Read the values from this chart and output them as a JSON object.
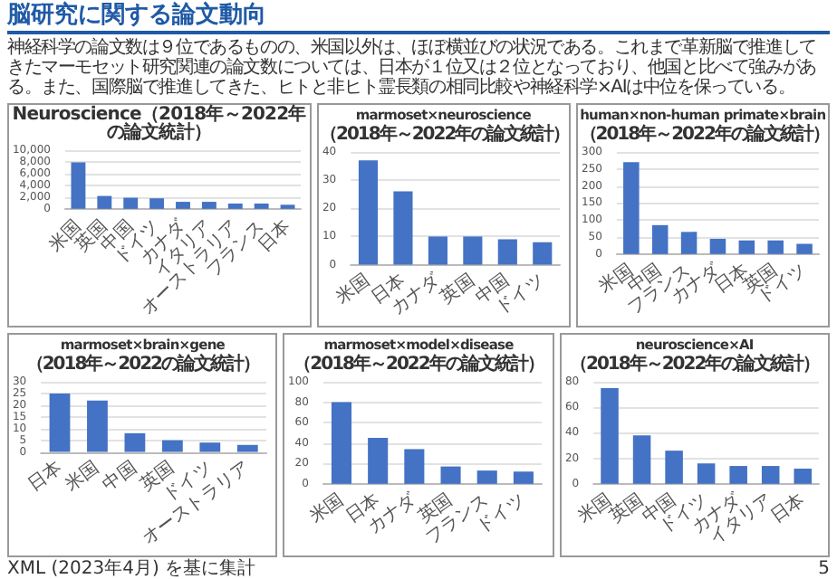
{
  "chart_data": [
    {
      "type": "other",
      "title": "脳研究に関する論文動向",
      "annotations": [
        "神経科学の論文数は９位であるものの、米国以外は、ほぼ横並びの状況である。これまで革新脳で推進してきたマーモセット研究関連の論文数については、日本が１位又は２位となっており、他国と比べて強みがある。また、国際脳で推進してきた、ヒトと非ヒト霊長類の相同比較や神経科学×AIは中位を保っている。"
      ]
    },
    {
      "type": "bar",
      "title": "Neuroscience（2018年～2022年の論文統計）",
      "categories": [
        "米国",
        "英国",
        "中国",
        "ドイツ",
        "カナダ",
        "イタリア",
        "オーストラリア",
        "フランス",
        "日本"
      ],
      "values": [
        7900,
        2200,
        1900,
        1800,
        1200,
        1200,
        900,
        900,
        700
      ],
      "color": "#4472c4",
      "ylim": [
        0,
        10000
      ],
      "yticks": [
        0,
        {
          "value": 2000,
          "label": "2,000"
        },
        {
          "value": 4000,
          "label": "4,000"
        },
        {
          "value": 6000,
          "label": "6,000"
        },
        {
          "value": 8000,
          "label": "8,000"
        },
        {
          "value": 10000,
          "label": "10,000"
        }
      ],
      "grid": "y"
    },
    {
      "type": "bar",
      "title": "marmoset×neuroscience",
      "subtitle": "（2018年～2022年の論文統計）",
      "categories": [
        "米国",
        "日本",
        "カナダ",
        "英国",
        "中国",
        "ドイツ"
      ],
      "values": [
        37,
        26,
        10,
        10,
        9,
        8
      ],
      "color": "#4472c4",
      "ylim": [
        0,
        40
      ],
      "yticks": [
        0,
        10,
        20,
        30,
        40
      ],
      "grid": "y"
    },
    {
      "type": "bar",
      "title": "human×non-human primate×brain",
      "subtitle": "（2018年～2022年の論文統計）",
      "categories": [
        "米国",
        "中国",
        "フランス",
        "カナダ",
        "日本",
        "英国",
        "ドイツ"
      ],
      "values": [
        270,
        85,
        65,
        45,
        40,
        40,
        30
      ],
      "color": "#4472c4",
      "ylim": [
        0,
        300
      ],
      "yticks": [
        0,
        50,
        100,
        150,
        200,
        250,
        300
      ],
      "grid": "y"
    },
    {
      "type": "bar",
      "title": "marmoset×brain×gene",
      "subtitle": "（2018年～2022の論文統計）",
      "categories": [
        "日本",
        "米国",
        "中国",
        "英国",
        "ドイツ",
        "オーストラリア"
      ],
      "values": [
        25,
        22,
        8,
        5,
        4,
        3
      ],
      "color": "#4472c4",
      "ylim": [
        0,
        30
      ],
      "yticks": [
        0,
        5,
        10,
        15,
        20,
        25,
        30
      ],
      "grid": "y"
    },
    {
      "type": "bar",
      "title": "marmoset×model×disease",
      "subtitle": "（2018年～2022年の論文統計）",
      "categories": [
        "米国",
        "日本",
        "カナダ",
        "英国",
        "フランス",
        "ドイツ"
      ],
      "values": [
        80,
        45,
        34,
        17,
        13,
        12
      ],
      "color": "#4472c4",
      "ylim": [
        0,
        100
      ],
      "yticks": [
        0,
        20,
        40,
        60,
        80,
        100
      ],
      "grid": "y"
    },
    {
      "type": "bar",
      "title": "neuroscience×AI",
      "subtitle": "（2018年～2022年の論文統計）",
      "categories": [
        "米国",
        "英国",
        "中国",
        "ドイツ",
        "カナダ",
        "イタリア",
        "日本"
      ],
      "values": [
        75,
        38,
        26,
        16,
        14,
        14,
        12
      ],
      "color": "#4472c4",
      "ylim": [
        0,
        80
      ],
      "yticks": [
        0,
        20,
        40,
        60,
        80
      ],
      "grid": "y"
    },
    {
      "type": "other",
      "annotations": [
        "XML (2023年4月) を基に集計",
        "5"
      ]
    }
  ]
}
